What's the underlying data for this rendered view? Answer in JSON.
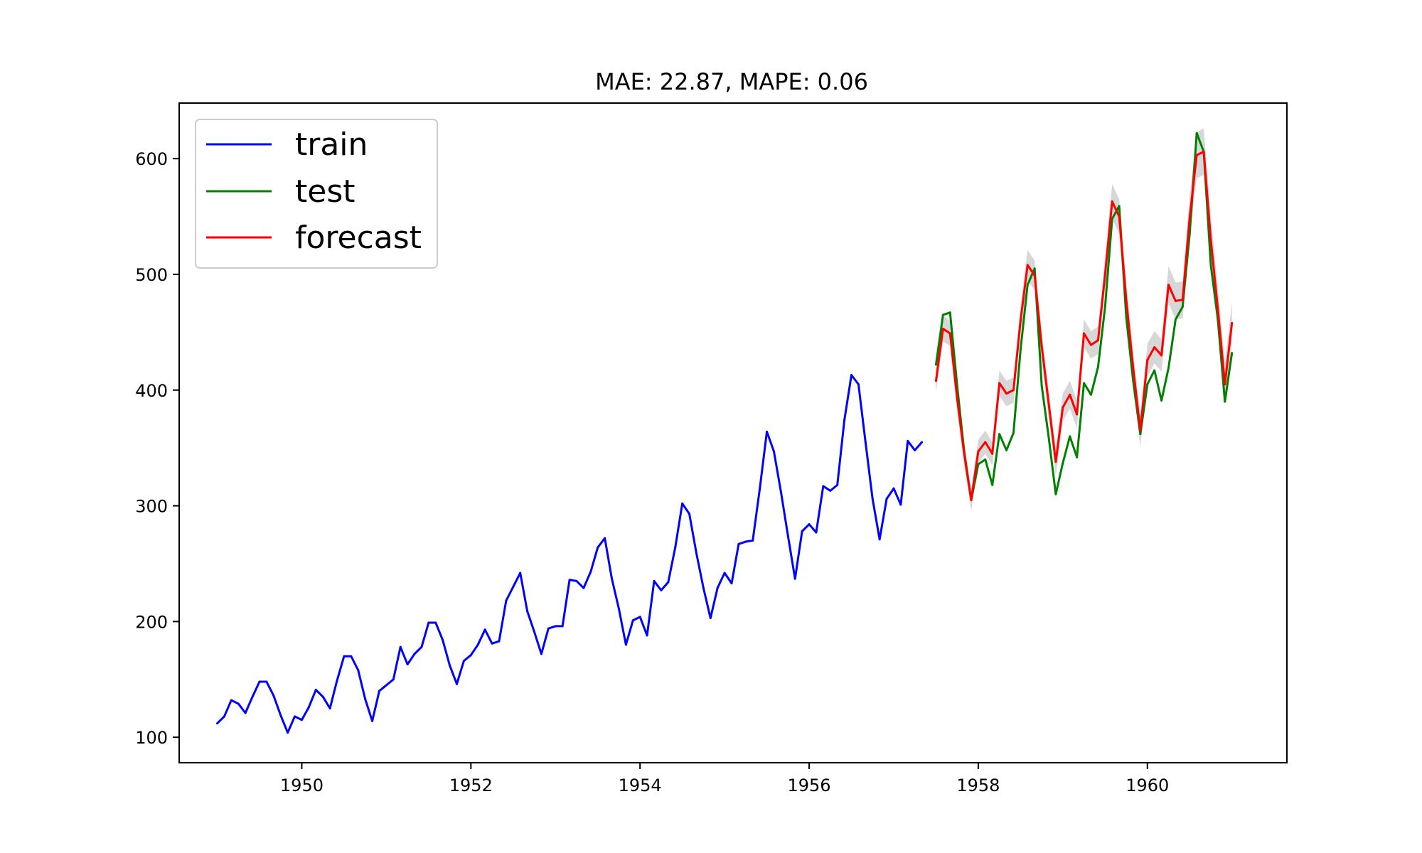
{
  "chart_data": {
    "type": "line",
    "title": "MAE: 22.87, MAPE: 0.06",
    "xlabel": "",
    "ylabel": "",
    "xlim": [
      1948.55,
      1961.65
    ],
    "ylim": [
      78,
      648
    ],
    "x_ticks": [
      1950,
      1952,
      1954,
      1956,
      1958,
      1960
    ],
    "x_tick_labels": [
      "1950",
      "1952",
      "1954",
      "1956",
      "1958",
      "1960"
    ],
    "y_ticks": [
      100,
      200,
      300,
      400,
      500,
      600
    ],
    "y_tick_labels": [
      "100",
      "200",
      "300",
      "400",
      "500",
      "600"
    ],
    "grid": false,
    "legend_placement": "top-left",
    "series": [
      {
        "name": "train",
        "color": "#0000ff",
        "x_start": 1949.0,
        "x_step": 0.083333,
        "values": [
          112,
          118,
          132,
          129,
          121,
          135,
          148,
          148,
          136,
          119,
          104,
          118,
          115,
          126,
          141,
          135,
          125,
          149,
          170,
          170,
          158,
          133,
          114,
          140,
          145,
          150,
          178,
          163,
          172,
          178,
          199,
          199,
          184,
          162,
          146,
          166,
          171,
          180,
          193,
          181,
          183,
          218,
          230,
          242,
          209,
          191,
          172,
          194,
          196,
          196,
          236,
          235,
          229,
          243,
          264,
          272,
          237,
          211,
          180,
          201,
          204,
          188,
          235,
          227,
          234,
          264,
          302,
          293,
          259,
          229,
          203,
          229,
          242,
          233,
          267,
          269,
          270,
          315,
          364,
          347,
          312,
          274,
          237,
          278,
          284,
          277,
          317,
          313,
          318,
          374,
          413,
          405,
          355,
          306,
          271,
          306,
          315,
          301,
          356,
          348,
          355
        ]
      },
      {
        "name": "test",
        "color": "#008000",
        "x_start": 1957.5,
        "x_step": 0.083333,
        "values": [
          422,
          465,
          467,
          404,
          347,
          305,
          336,
          340,
          318,
          362,
          348,
          363,
          435,
          491,
          505,
          404,
          359,
          310,
          337,
          360,
          342,
          406,
          396,
          420,
          472,
          548,
          559,
          463,
          407,
          362,
          405,
          417,
          391,
          419,
          461,
          472,
          535,
          622,
          606,
          508,
          461,
          390,
          432
        ]
      },
      {
        "name": "forecast",
        "color": "#ff0000",
        "x_start": 1957.5,
        "x_step": 0.083333,
        "values": [
          408,
          453,
          449,
          393,
          345,
          305,
          347,
          355,
          345,
          406,
          397,
          400,
          460,
          508,
          499,
          438,
          388,
          338,
          385,
          396,
          379,
          449,
          439,
          443,
          500,
          563,
          550,
          478,
          418,
          365,
          426,
          437,
          430,
          491,
          477,
          478,
          549,
          603,
          606,
          530,
          470,
          405,
          458
        ],
        "band_halfwidth": [
          10,
          11,
          11,
          11,
          10,
          9,
          10,
          10,
          10,
          11,
          11,
          11,
          12,
          13,
          13,
          13,
          12,
          12,
          12,
          12,
          12,
          12,
          12,
          12,
          14,
          15,
          15,
          15,
          14,
          14,
          14,
          14,
          14,
          16,
          16,
          16,
          18,
          20,
          20,
          20,
          18,
          18,
          18
        ]
      }
    ]
  }
}
